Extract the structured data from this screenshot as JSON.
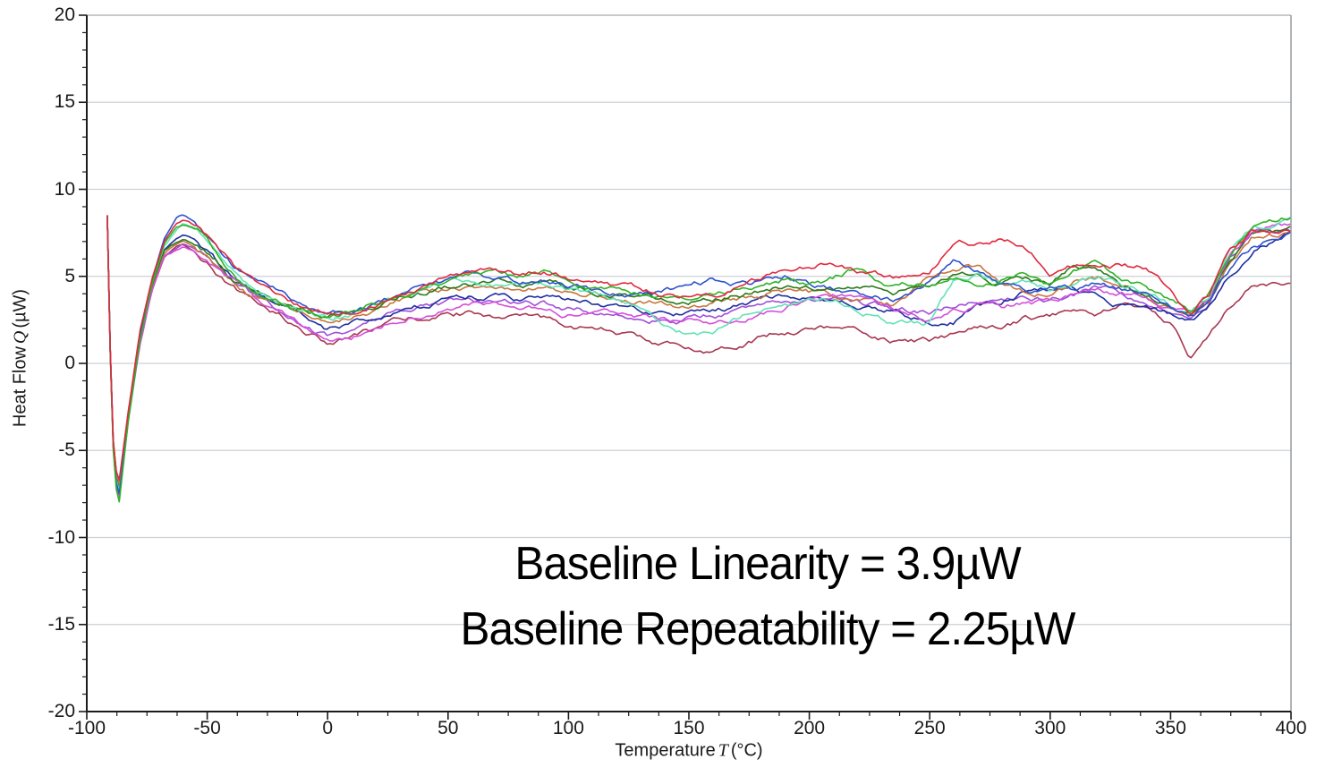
{
  "chart_data": {
    "type": "line",
    "title": "",
    "xlabel": "Temperature T (°C)",
    "ylabel": "Heat Flow Q (µW)",
    "xlabel_parts": {
      "prefix": "Temperature",
      "symbol": "T",
      "unit": "(°C)"
    },
    "ylabel_parts": {
      "prefix": "Heat Flow",
      "symbol": "Q",
      "unit": "(µW)"
    },
    "xlim": [
      -100,
      400
    ],
    "ylim": [
      -20,
      20
    ],
    "x_major_ticks": [
      -100,
      -50,
      0,
      50,
      100,
      150,
      200,
      250,
      300,
      350,
      400
    ],
    "y_major_ticks": [
      20,
      15,
      10,
      5,
      0,
      -5,
      -10,
      -15,
      -20
    ],
    "x_minor_step": 12.5,
    "y_minor_step": 1,
    "grid": "horizontal-only",
    "legend": "none",
    "annotation_lines": [
      "Baseline Linearity = 3.9µW",
      "Baseline Repeatability = 2.25µW"
    ],
    "description": "Ten overlaid DSC baseline scans: sharp start-up transient near -91°C dipping to about -8 µW, recovery peak near -60°C at 7-8.5 µW, flat noisy baseline of 1-6 µW from 0 to 340°C, dip near 358°C, end-of-scan rise to 5-8.5 µW at 400°C",
    "x_anchors": [
      -91.5,
      -91,
      -89,
      -87,
      -83,
      -78,
      -73,
      -68,
      -63,
      -60,
      -55,
      -50,
      -44,
      -38,
      -32,
      -26,
      -20,
      -14,
      -8,
      0,
      10,
      20,
      30,
      40,
      50,
      60,
      70,
      80,
      90,
      100,
      115,
      130,
      145,
      160,
      175,
      190,
      205,
      220,
      235,
      250,
      260,
      270,
      280,
      290,
      300,
      310,
      320,
      330,
      340,
      350,
      358,
      366,
      374,
      384,
      400
    ],
    "series": [
      {
        "name": "maroon",
        "color": "#a83750",
        "values": [
          8.5,
          3.9,
          -4.4,
          -7.4,
          -3.0,
          1.4,
          4.1,
          6.0,
          6.6,
          6.8,
          6.4,
          5.8,
          5.0,
          4.3,
          3.7,
          3.2,
          2.8,
          2.3,
          1.7,
          1.2,
          1.5,
          1.9,
          2.3,
          2.6,
          2.8,
          2.9,
          2.8,
          2.6,
          2.4,
          2.2,
          1.9,
          1.4,
          0.9,
          0.8,
          1.4,
          1.9,
          2.2,
          1.8,
          1.3,
          1.2,
          1.6,
          2.1,
          1.8,
          2.5,
          2.6,
          3.2,
          3.0,
          3.4,
          2.9,
          2.2,
          0.3,
          1.7,
          3.4,
          4.5,
          4.7
        ]
      },
      {
        "name": "violet",
        "color": "#a24fd9",
        "values": [
          8.5,
          4.1,
          -4.6,
          -7.7,
          -3.2,
          1.3,
          4.3,
          6.2,
          6.6,
          6.9,
          6.6,
          6.1,
          5.3,
          4.5,
          3.9,
          3.4,
          3.0,
          2.7,
          2.2,
          1.6,
          1.9,
          2.4,
          2.9,
          3.2,
          3.4,
          3.6,
          3.5,
          3.3,
          3.4,
          3.2,
          3.0,
          2.8,
          2.6,
          2.8,
          3.1,
          3.5,
          3.8,
          3.6,
          3.2,
          3.0,
          3.4,
          3.7,
          3.5,
          3.8,
          3.6,
          4.0,
          4.3,
          4.0,
          3.6,
          3.1,
          2.7,
          3.6,
          5.9,
          7.5,
          7.6
        ]
      },
      {
        "name": "navy",
        "color": "#1f2fa0",
        "values": [
          8.5,
          4.0,
          -4.7,
          -8.0,
          -3.3,
          1.2,
          4.4,
          6.5,
          7.2,
          7.4,
          7.1,
          6.5,
          5.6,
          4.8,
          4.2,
          3.7,
          3.3,
          3.0,
          2.6,
          1.8,
          2.2,
          2.7,
          3.1,
          3.4,
          3.7,
          3.9,
          3.8,
          3.6,
          3.8,
          3.6,
          3.3,
          3.0,
          2.8,
          3.0,
          3.4,
          3.8,
          3.5,
          3.2,
          3.0,
          2.4,
          2.5,
          3.4,
          3.6,
          4.2,
          4.4,
          4.5,
          4.0,
          3.4,
          3.2,
          2.8,
          2.4,
          3.2,
          5.0,
          6.6,
          7.5
        ]
      },
      {
        "name": "orange",
        "color": "#c8763e",
        "values": [
          8.5,
          4.0,
          -4.4,
          -7.5,
          -3.1,
          1.6,
          4.4,
          6.3,
          6.8,
          7.0,
          6.7,
          6.2,
          5.4,
          4.6,
          4.0,
          3.6,
          3.3,
          3.1,
          2.9,
          2.5,
          2.8,
          3.2,
          3.6,
          3.9,
          4.2,
          4.4,
          4.5,
          4.3,
          4.4,
          4.2,
          3.9,
          3.6,
          3.3,
          3.5,
          3.8,
          4.2,
          4.0,
          3.7,
          3.4,
          4.8,
          5.4,
          5.6,
          4.8,
          4.3,
          4.2,
          4.8,
          4.9,
          4.3,
          3.9,
          3.3,
          2.8,
          3.6,
          5.8,
          7.3,
          7.5
        ]
      },
      {
        "name": "darkgreen",
        "color": "#2a7a1a",
        "values": [
          8.5,
          4.0,
          -4.6,
          -7.8,
          -3.2,
          1.5,
          4.4,
          6.4,
          6.9,
          7.1,
          6.8,
          6.3,
          5.5,
          4.7,
          4.1,
          3.7,
          3.4,
          3.2,
          3.0,
          2.8,
          3.0,
          3.4,
          3.8,
          4.1,
          4.4,
          4.6,
          4.7,
          4.5,
          4.6,
          4.4,
          4.1,
          3.8,
          3.5,
          3.7,
          4.1,
          4.5,
          4.2,
          4.5,
          4.1,
          4.4,
          4.8,
          5.2,
          4.6,
          4.9,
          4.4,
          5.5,
          5.2,
          4.4,
          3.9,
          3.3,
          2.8,
          3.7,
          5.9,
          7.5,
          7.6
        ]
      },
      {
        "name": "magenta",
        "color": "#d34fd9",
        "values": [
          8.5,
          4.0,
          -4.8,
          -8.3,
          -3.5,
          1.1,
          4.2,
          6.2,
          6.5,
          6.7,
          6.4,
          5.9,
          5.1,
          4.4,
          3.8,
          3.3,
          2.9,
          2.4,
          1.8,
          1.0,
          1.3,
          2.0,
          2.6,
          3.0,
          3.2,
          3.3,
          3.2,
          3.0,
          3.1,
          2.9,
          2.7,
          2.5,
          2.3,
          2.5,
          2.8,
          3.4,
          4.0,
          3.7,
          3.1,
          2.6,
          3.2,
          3.5,
          3.3,
          3.6,
          3.4,
          3.8,
          4.4,
          4.1,
          3.7,
          3.2,
          2.7,
          3.7,
          6.0,
          7.6,
          7.8
        ]
      },
      {
        "name": "aquamarine",
        "color": "#63e2b7",
        "values": [
          8.5,
          4.1,
          -4.7,
          -7.9,
          -3.3,
          1.3,
          4.5,
          6.7,
          7.6,
          8.0,
          7.7,
          7.1,
          6.1,
          5.2,
          4.5,
          4.0,
          3.6,
          3.3,
          3.0,
          2.6,
          2.9,
          3.3,
          3.8,
          4.1,
          4.4,
          4.7,
          4.6,
          4.4,
          4.6,
          4.2,
          3.8,
          3.1,
          1.9,
          1.6,
          2.9,
          3.4,
          3.8,
          3.3,
          2.4,
          2.3,
          4.8,
          5.0,
          4.4,
          4.7,
          4.3,
          4.8,
          5.1,
          4.4,
          4.0,
          3.3,
          2.9,
          3.9,
          6.2,
          7.7,
          8.1
        ]
      },
      {
        "name": "blue",
        "color": "#2f52cc",
        "values": [
          8.5,
          4.1,
          -4.8,
          -8.1,
          -3.4,
          1.4,
          4.7,
          7.0,
          8.3,
          8.5,
          8.1,
          7.3,
          6.3,
          5.4,
          4.8,
          4.3,
          3.9,
          3.5,
          3.2,
          2.8,
          3.0,
          3.5,
          3.9,
          4.3,
          4.6,
          4.9,
          4.7,
          4.5,
          4.8,
          4.4,
          4.0,
          3.8,
          4.3,
          4.8,
          4.6,
          5.1,
          4.4,
          4.0,
          3.6,
          4.7,
          5.9,
          5.5,
          4.7,
          4.2,
          4.4,
          4.3,
          4.6,
          4.2,
          3.8,
          3.2,
          2.6,
          3.3,
          5.1,
          6.6,
          7.4
        ]
      },
      {
        "name": "green",
        "color": "#31b226",
        "values": [
          8.5,
          4.0,
          -5.0,
          -8.6,
          -3.6,
          1.2,
          4.5,
          6.8,
          7.7,
          7.9,
          7.6,
          6.9,
          5.9,
          5.1,
          4.4,
          3.9,
          3.5,
          3.2,
          3.0,
          2.7,
          3.0,
          3.5,
          4.0,
          4.4,
          4.7,
          5.0,
          5.1,
          4.9,
          5.1,
          4.7,
          4.3,
          4.0,
          3.6,
          3.9,
          4.4,
          4.9,
          4.6,
          5.5,
          4.4,
          4.7,
          5.0,
          4.6,
          4.9,
          5.3,
          4.5,
          5.2,
          5.5,
          4.7,
          4.2,
          3.4,
          2.9,
          4.0,
          6.1,
          7.9,
          8.4
        ]
      },
      {
        "name": "red",
        "color": "#e1293f",
        "values": [
          8.5,
          4.0,
          -4.5,
          -7.2,
          -3.0,
          1.8,
          4.8,
          6.9,
          8.0,
          8.2,
          7.9,
          7.1,
          6.1,
          5.2,
          4.6,
          4.1,
          3.7,
          3.4,
          3.1,
          2.9,
          3.1,
          3.6,
          4.1,
          4.5,
          4.9,
          5.2,
          5.3,
          5.1,
          5.3,
          5.0,
          4.6,
          4.2,
          3.9,
          3.8,
          4.6,
          5.5,
          5.8,
          5.2,
          4.8,
          5.4,
          7.0,
          7.0,
          7.1,
          6.6,
          5.0,
          5.6,
          5.3,
          5.5,
          5.4,
          4.2,
          3.0,
          4.1,
          6.3,
          7.6,
          7.7
        ]
      }
    ]
  }
}
